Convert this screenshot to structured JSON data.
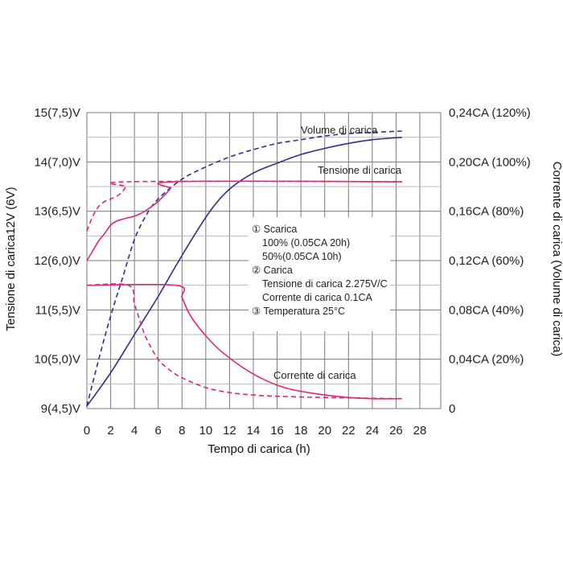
{
  "chart_data": {
    "type": "line",
    "title": "",
    "xlabel": "Tempo di carica (h)",
    "ylabel_left": "Tensione di carica12V (6V)",
    "ylabel_right": "Corrente di carica (Volume di carica)",
    "x_ticks": [
      "0",
      "2",
      "4",
      "6",
      "8",
      "10",
      "12",
      "14",
      "16",
      "18",
      "20",
      "22",
      "24",
      "26",
      "28"
    ],
    "y_left_ticks": [
      "9(4,5)V",
      "10(5,0)V",
      "11(5,5)V",
      "12(6,0)V",
      "13(6,5)V",
      "14(7,0)V",
      "15(7,5)V"
    ],
    "y_right_ticks": [
      "0",
      "0,04CA (20%)",
      "0,08CA (40%)",
      "0,12CA (60%)",
      "0,16CA (80%)",
      "0,20CA (100%)",
      "0,24CA (120%)"
    ],
    "xlim": [
      0,
      28
    ],
    "ylim_left": [
      9,
      15
    ],
    "ylim_right": [
      0,
      0.24
    ],
    "grid": true,
    "series": [
      {
        "name": "Volume di carica",
        "label_text": "Volume di carica",
        "axis": "right",
        "style": "solid",
        "color": "#2e2e8f",
        "points": [
          [
            0,
            0.002
          ],
          [
            2,
            0.029
          ],
          [
            4,
            0.06
          ],
          [
            6,
            0.091
          ],
          [
            7.5,
            0.116
          ],
          [
            9,
            0.14
          ],
          [
            10.5,
            0.162
          ],
          [
            12,
            0.178
          ],
          [
            14,
            0.191
          ],
          [
            16,
            0.199
          ],
          [
            18,
            0.206
          ],
          [
            20,
            0.211
          ],
          [
            22,
            0.215
          ],
          [
            24,
            0.218
          ],
          [
            26.5,
            0.22
          ]
        ]
      },
      {
        "name": "Volume di carica (50%)",
        "axis": "right",
        "style": "dashed",
        "color": "#2e2e8f",
        "points": [
          [
            0,
            0.002
          ],
          [
            1,
            0.04
          ],
          [
            2,
            0.075
          ],
          [
            3,
            0.106
          ],
          [
            4,
            0.137
          ],
          [
            5,
            0.157
          ],
          [
            6,
            0.17
          ],
          [
            8,
            0.186
          ],
          [
            10,
            0.196
          ],
          [
            12,
            0.204
          ],
          [
            14,
            0.21
          ],
          [
            16,
            0.215
          ],
          [
            18,
            0.218
          ],
          [
            20,
            0.221
          ],
          [
            22,
            0.223
          ],
          [
            24,
            0.224
          ],
          [
            26.5,
            0.225
          ]
        ]
      },
      {
        "name": "Tensione di carica",
        "label_text": "Tensione di carica",
        "axis": "left",
        "style": "solid",
        "color": "#e0257a",
        "points": [
          [
            0,
            12.0
          ],
          [
            0.5,
            12.2
          ],
          [
            1,
            12.4
          ],
          [
            1.5,
            12.55
          ],
          [
            2,
            12.72
          ],
          [
            2.5,
            12.8
          ],
          [
            3,
            12.84
          ],
          [
            3.5,
            12.87
          ],
          [
            4,
            12.9
          ],
          [
            4.5,
            12.95
          ],
          [
            5,
            13.02
          ],
          [
            6,
            13.2
          ],
          [
            7,
            13.45
          ],
          [
            7.5,
            13.6
          ],
          [
            26.5,
            13.6
          ]
        ]
      },
      {
        "name": "Tensione di carica (50%)",
        "axis": "left",
        "style": "dashed",
        "color": "#e0257a",
        "points": [
          [
            0,
            12.6
          ],
          [
            0.5,
            12.9
          ],
          [
            1,
            13.1
          ],
          [
            1.5,
            13.2
          ],
          [
            2,
            13.25
          ],
          [
            2.5,
            13.3
          ],
          [
            3,
            13.4
          ],
          [
            3.3,
            13.5
          ],
          [
            3.7,
            13.6
          ],
          [
            26.5,
            13.6
          ]
        ]
      },
      {
        "name": "Corrente di carica",
        "label_text": "Corrente di carica",
        "axis": "right",
        "style": "solid",
        "color": "#e0257a",
        "points": [
          [
            0,
            0.1
          ],
          [
            7.5,
            0.1
          ],
          [
            8,
            0.09
          ],
          [
            8.5,
            0.079
          ],
          [
            9,
            0.071
          ],
          [
            10,
            0.059
          ],
          [
            11,
            0.049
          ],
          [
            12,
            0.041
          ],
          [
            13,
            0.034
          ],
          [
            14,
            0.028
          ],
          [
            15,
            0.023
          ],
          [
            16,
            0.019
          ],
          [
            17,
            0.016
          ],
          [
            18,
            0.014
          ],
          [
            20,
            0.011
          ],
          [
            22,
            0.009
          ],
          [
            24,
            0.008
          ],
          [
            26.5,
            0.008
          ]
        ]
      },
      {
        "name": "Corrente di carica (50%)",
        "axis": "right",
        "style": "dashed",
        "color": "#e0257a",
        "points": [
          [
            0,
            0.1
          ],
          [
            3.5,
            0.1
          ],
          [
            4,
            0.085
          ],
          [
            4.5,
            0.07
          ],
          [
            5,
            0.057
          ],
          [
            6,
            0.04
          ],
          [
            7,
            0.031
          ],
          [
            8,
            0.025
          ],
          [
            10,
            0.017
          ],
          [
            12,
            0.013
          ],
          [
            14,
            0.011
          ],
          [
            16,
            0.01
          ],
          [
            20,
            0.009
          ],
          [
            26.5,
            0.008
          ]
        ]
      }
    ],
    "notes": [
      "① Scarica",
      "100% (0.05CA    20h)",
      "50%(0.05CA    10h)",
      "② Carica",
      "Tensione di carica 2.275V/C",
      "Corrente di carica 0.1CA",
      "③ Temperatura 25°C"
    ]
  }
}
